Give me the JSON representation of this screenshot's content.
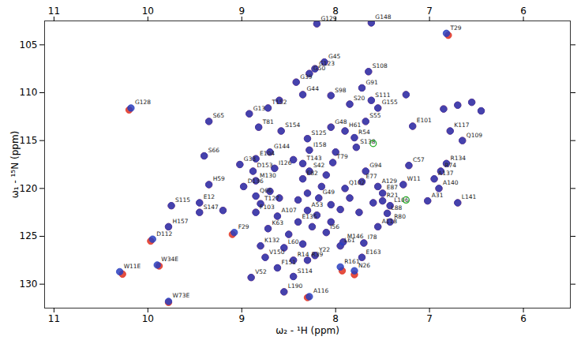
{
  "chart_data": {
    "type": "scatter",
    "xlabel": "ω₂ - ¹H (ppm)",
    "ylabel": "ω₁ - ¹⁵N (ppm)",
    "xlim": [
      11.1,
      5.5
    ],
    "ylim": [
      132.5,
      102.5
    ],
    "xticks": [
      11,
      10,
      9,
      8,
      7,
      6
    ],
    "yticks": [
      105,
      110,
      115,
      120,
      125,
      130
    ],
    "grid": false,
    "series": [
      {
        "color": "#e03020",
        "marker": "circle",
        "x": [
          8.2,
          7.62,
          6.8,
          8.22,
          8.12,
          8.42,
          8.28,
          8.35,
          7.65,
          7.72,
          8.05,
          7.85,
          7.62,
          7.55,
          8.72,
          8.92,
          9.35,
          10.2,
          8.82,
          8.58,
          8.05,
          7.9,
          7.68,
          6.78,
          7.18,
          6.65,
          9.4,
          9.02,
          8.85,
          8.7,
          8.65,
          8.35,
          8.28,
          8.3,
          8.03,
          7.78,
          7.8,
          8.85,
          8.88,
          8.98,
          9.35,
          7.68,
          7.22,
          6.82,
          7.28,
          7.55,
          6.95,
          6.88,
          7.5,
          7.5,
          7.42,
          7.45,
          6.9,
          6.7,
          7.02,
          9.45,
          9.75,
          9.45,
          9.78,
          9.97,
          8.85,
          8.8,
          8.85,
          8.62,
          8.4,
          8.72,
          9.1,
          8.8,
          8.55,
          8.75,
          8.9,
          8.62,
          8.45,
          8.45,
          8.22,
          8.3,
          7.93,
          7.95,
          8.1,
          7.92,
          7.55,
          7.7,
          7.72,
          7.8,
          7.42,
          8.3,
          10.27,
          9.88,
          9.78,
          8.3,
          8.35,
          8.18,
          7.9,
          7.72,
          8.28,
          8.55,
          8.3,
          8.15,
          8.05,
          8.4,
          8.2,
          7.95,
          8.1,
          8.45,
          8.0,
          8.6,
          7.85,
          8.25,
          8.05,
          8.5,
          8.35,
          7.6,
          6.7,
          6.55,
          6.85,
          6.45,
          7.25,
          8.6,
          9.2,
          8.7,
          7.75
        ],
        "y": [
          102.8,
          102.7,
          104.0,
          107.5,
          106.8,
          108.9,
          108.0,
          110.2,
          107.8,
          109.5,
          110.3,
          111.2,
          110.8,
          111.6,
          111.6,
          112.2,
          113.0,
          111.8,
          113.6,
          114.0,
          113.6,
          114.0,
          113.0,
          114.0,
          113.5,
          115.0,
          116.6,
          117.5,
          116.9,
          116.2,
          117.9,
          117.4,
          116.0,
          114.8,
          117.3,
          115.7,
          114.7,
          119.2,
          118.2,
          119.8,
          119.6,
          118.2,
          117.6,
          117.4,
          119.6,
          119.8,
          119.0,
          118.2,
          120.5,
          121.3,
          121.8,
          122.6,
          120.0,
          121.5,
          121.3,
          121.5,
          121.8,
          122.5,
          124.0,
          125.5,
          120.8,
          121.6,
          122.5,
          122.9,
          123.5,
          124.2,
          124.8,
          126.0,
          126.2,
          127.2,
          129.3,
          128.3,
          129.2,
          127.5,
          127.0,
          127.5,
          128.6,
          126.0,
          124.6,
          125.6,
          124.0,
          125.7,
          127.2,
          129.0,
          123.5,
          131.4,
          128.95,
          128.1,
          131.9,
          122.3,
          119.0,
          121.0,
          120.0,
          119.3,
          118.2,
          130.8,
          120.5,
          119.8,
          121.7,
          121.2,
          122.8,
          122.2,
          118.6,
          117.0,
          116.2,
          121.0,
          121.0,
          124.0,
          123.5,
          124.8,
          125.8,
          121.5,
          111.3,
          111.0,
          111.7,
          111.9,
          110.2,
          110.8,
          122.3,
          120.3,
          122.5
        ]
      },
      {
        "color": "#2a3fbf",
        "marker": "circle",
        "x": [
          8.2,
          7.62,
          6.82,
          8.22,
          8.12,
          8.42,
          8.28,
          8.35,
          7.65,
          7.72,
          8.05,
          7.85,
          7.62,
          7.55,
          8.72,
          8.92,
          9.35,
          10.18,
          8.82,
          8.58,
          8.05,
          7.9,
          7.68,
          6.78,
          7.18,
          6.65,
          9.4,
          9.02,
          8.85,
          8.7,
          8.65,
          8.35,
          8.28,
          8.3,
          8.03,
          7.78,
          7.8,
          8.85,
          8.88,
          8.98,
          9.35,
          7.68,
          7.22,
          6.82,
          7.28,
          7.55,
          6.95,
          6.88,
          7.5,
          7.5,
          7.42,
          7.45,
          6.9,
          6.7,
          7.02,
          9.45,
          9.75,
          9.45,
          9.78,
          9.95,
          8.85,
          8.8,
          8.85,
          8.62,
          8.4,
          8.72,
          9.08,
          8.8,
          8.55,
          8.75,
          8.9,
          8.62,
          8.45,
          8.45,
          8.22,
          8.3,
          7.95,
          7.95,
          8.1,
          7.92,
          7.55,
          7.7,
          7.72,
          7.8,
          7.42,
          8.28,
          10.3,
          9.9,
          9.78,
          8.3,
          8.35,
          8.18,
          7.9,
          7.72,
          8.28,
          8.55,
          8.3,
          8.15,
          8.05,
          8.4,
          8.2,
          7.95,
          8.1,
          8.45,
          8.0,
          8.6,
          7.85,
          8.25,
          8.05,
          8.5,
          8.35,
          7.6,
          6.7,
          6.55,
          6.85,
          6.45,
          7.25,
          8.6,
          9.2,
          8.7,
          7.75
        ],
        "y": [
          102.8,
          102.7,
          103.8,
          107.5,
          106.8,
          108.9,
          108.0,
          110.2,
          107.8,
          109.5,
          110.3,
          111.2,
          110.8,
          111.6,
          111.6,
          112.2,
          113.0,
          111.6,
          113.6,
          114.0,
          113.6,
          114.0,
          113.0,
          114.0,
          113.5,
          115.0,
          116.6,
          117.5,
          116.9,
          116.2,
          117.9,
          117.4,
          116.0,
          114.8,
          117.3,
          115.7,
          114.7,
          119.2,
          118.2,
          119.8,
          119.6,
          118.2,
          117.6,
          117.4,
          119.6,
          119.8,
          119.0,
          118.2,
          120.5,
          121.3,
          121.8,
          122.6,
          120.0,
          121.5,
          121.3,
          121.5,
          121.8,
          122.5,
          124.0,
          125.3,
          120.8,
          121.6,
          122.5,
          122.9,
          123.5,
          124.2,
          124.6,
          126.0,
          126.2,
          127.2,
          129.3,
          128.3,
          129.2,
          127.5,
          127.0,
          127.5,
          128.2,
          126.0,
          124.6,
          125.6,
          124.0,
          125.7,
          127.2,
          128.6,
          123.5,
          131.3,
          128.7,
          128.0,
          131.8,
          122.3,
          119.0,
          121.0,
          120.0,
          119.3,
          118.2,
          130.8,
          120.5,
          119.8,
          121.7,
          121.2,
          122.8,
          122.2,
          118.6,
          117.0,
          116.2,
          121.0,
          121.0,
          124.0,
          123.5,
          124.8,
          125.8,
          121.5,
          111.3,
          111.0,
          111.7,
          111.9,
          110.2,
          110.8,
          122.3,
          120.3,
          122.5
        ],
        "labels": [
          "G129",
          "G148",
          "T29",
          "G123",
          "G45",
          "G39",
          "G50",
          "G44",
          "S108",
          "G91",
          "S98",
          "S20",
          "S111",
          "G155",
          "T152",
          "G13",
          "S65",
          "G128",
          "T81",
          "S154",
          "G48",
          "H61",
          "S55",
          "K117",
          "E101",
          "Q109",
          "S66",
          "G33",
          "E104",
          "G144",
          "I126",
          "T143",
          "I158",
          "S125",
          "T79",
          "S138",
          "R54",
          "M130",
          "D153",
          "D136",
          "H59",
          "G94",
          "C57",
          "R134",
          "W11",
          "A129",
          "A137",
          "R74",
          "E87",
          "R21",
          "L106",
          "L88",
          "A140",
          "L141",
          "A31",
          "E12",
          "S115",
          "S147",
          "H157",
          "D112",
          "Q66",
          "T127",
          "F103",
          "A107",
          "E135",
          "K63",
          "F29",
          "K132",
          "L60",
          "V150",
          "V52",
          "F151",
          "S114",
          "R14",
          "Y22",
          "R39",
          "R161",
          "L61",
          "I56",
          "M146",
          "A118",
          "I78",
          "E163",
          "N26",
          "R80",
          "A116",
          "W11E",
          "W34E",
          "W73E",
          "A53",
          "E82",
          "G49",
          "Q102",
          "E77",
          "S42",
          "L190",
          null,
          null,
          null,
          null,
          null,
          null,
          null,
          null,
          null,
          null,
          null,
          null,
          null,
          null,
          null,
          null,
          null,
          null,
          null,
          null,
          null,
          null,
          null,
          null,
          null
        ]
      },
      {
        "color": "#22aa22",
        "marker": "ring",
        "x": [
          7.25,
          7.6
        ],
        "y": [
          121.2,
          115.3
        ]
      }
    ]
  }
}
